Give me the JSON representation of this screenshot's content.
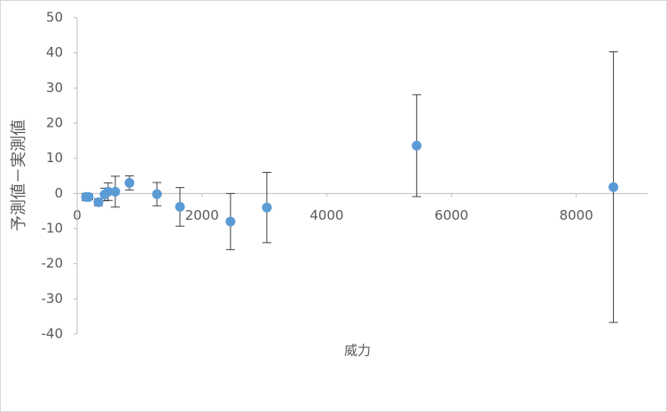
{
  "chart_data": {
    "type": "scatter",
    "x_label": "威力",
    "y_label": "予測値－実測値",
    "color": "#5b9bd5",
    "x": [
      142,
      185,
      341,
      440,
      497,
      611,
      838,
      1279,
      1648,
      2458,
      3041,
      5442,
      8596
    ],
    "values": [
      -1,
      -1,
      -2.5,
      -0.3,
      0.5,
      0.5,
      3,
      -0.2,
      -3.8,
      -8,
      -4,
      13.6,
      1.8
    ],
    "errors": [
      1,
      0.8,
      1,
      1.8,
      2.5,
      4.4,
      2,
      3.3,
      5.5,
      8,
      10,
      14.5,
      38.5
    ],
    "xlim": [
      0,
      9000
    ],
    "ylim": [
      -40,
      50
    ],
    "xticks": [
      0,
      2000,
      4000,
      6000,
      8000
    ],
    "yticks": [
      -40,
      -30,
      -20,
      -10,
      0,
      10,
      20,
      30,
      40,
      50
    ]
  }
}
